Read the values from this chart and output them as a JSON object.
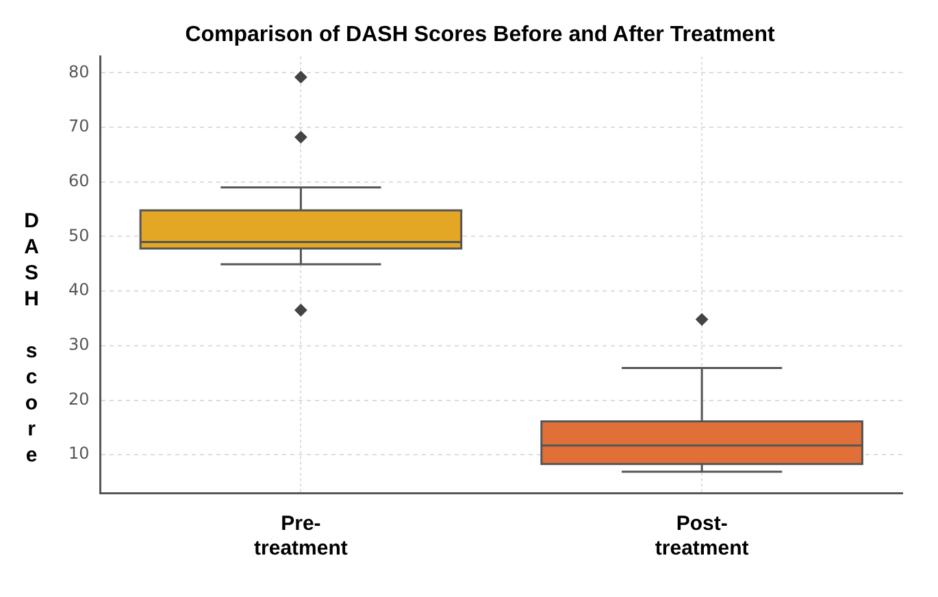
{
  "chart_data": {
    "type": "box",
    "title": "Comparison of DASH Scores Before and After Treatment",
    "ylabel": "DASH score",
    "categories": [
      "Pre-treatment",
      "Post-treatment"
    ],
    "colors": [
      "#e3a625",
      "#e07038"
    ],
    "boxes": [
      {
        "low": 44.9,
        "q1": 47.8,
        "median": 49.0,
        "q3": 54.8,
        "high": 59.0,
        "outliers": [
          79.2,
          68.2,
          36.5
        ]
      },
      {
        "low": 6.9,
        "q1": 8.3,
        "median": 11.7,
        "q3": 16.1,
        "high": 25.9,
        "outliers": [
          34.8
        ]
      }
    ],
    "ylim": [
      3,
      83
    ],
    "yticks": [
      10,
      20,
      30,
      40,
      50,
      60,
      70,
      80
    ],
    "grid": true,
    "marker": "diamond"
  }
}
